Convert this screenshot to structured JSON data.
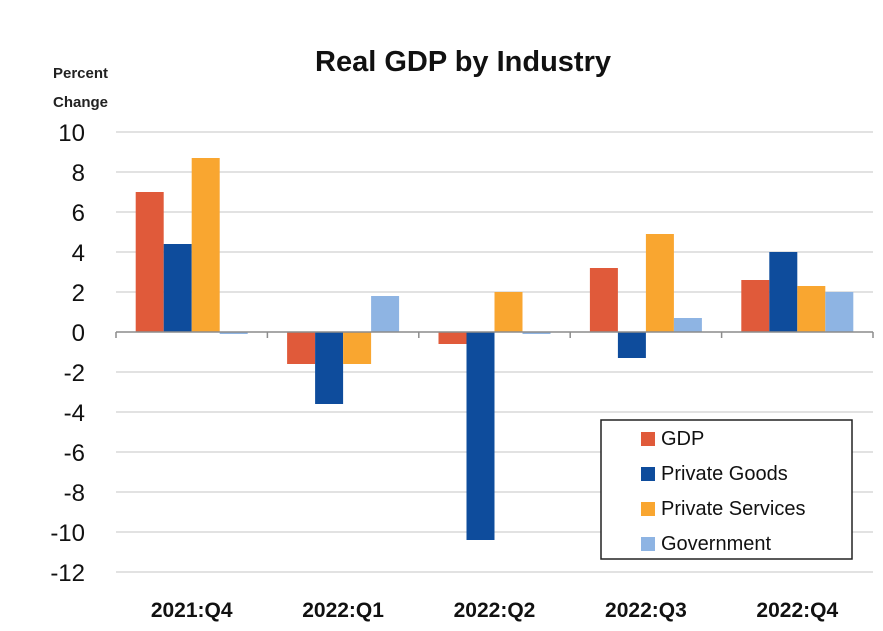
{
  "chart_data": {
    "type": "bar",
    "title": "Real GDP by Industry",
    "ylabel": [
      "Percent",
      "Change"
    ],
    "xlabel": "",
    "categories": [
      "2021:Q4",
      "2022:Q1",
      "2022:Q2",
      "2022:Q3",
      "2022:Q4"
    ],
    "ylim": [
      -12,
      10
    ],
    "yticks": [
      10,
      8,
      6,
      4,
      2,
      0,
      -2,
      -4,
      -6,
      -8,
      -10,
      -12
    ],
    "grid": true,
    "legend_position": "bottom-right",
    "series": [
      {
        "name": "GDP",
        "color": "#E05A3A",
        "values": [
          7.0,
          -1.6,
          -0.6,
          3.2,
          2.6
        ]
      },
      {
        "name": "Private Goods",
        "color": "#0E4C9C",
        "values": [
          4.4,
          -3.6,
          -10.4,
          -1.3,
          4.0
        ]
      },
      {
        "name": "Private Services",
        "color": "#F9A630",
        "values": [
          8.7,
          -1.6,
          2.0,
          4.9,
          2.3
        ]
      },
      {
        "name": "Government",
        "color": "#8EB4E3",
        "values": [
          -0.1,
          1.8,
          -0.1,
          0.7,
          2.0
        ]
      }
    ]
  }
}
